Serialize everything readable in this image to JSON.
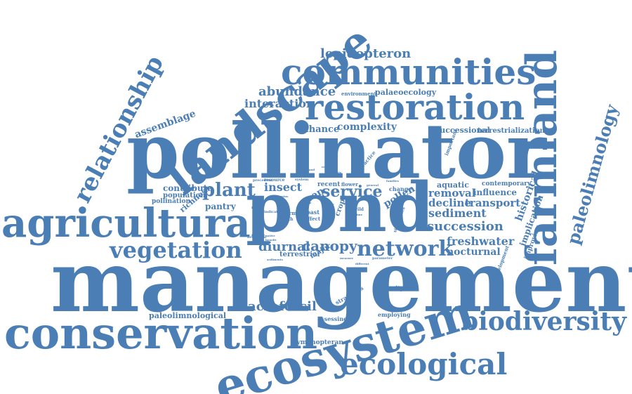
{
  "word_color": "#4a7eb5",
  "background_color": "#ffffff",
  "words": {
    "management": "management",
    "pollinator": "pollinator",
    "pond": "pond",
    "agricultural": "agricultural",
    "conservation": "conservation",
    "ecosystem": "ecosystem",
    "landscape": "landscape",
    "communities": "communities",
    "restoration": "restoration",
    "farmland": "farmland",
    "ecological": "ecological",
    "biodiversity": "biodiversity",
    "relationship": "relationship",
    "vegetation": "vegetation",
    "network": "network",
    "paleolimnology": "paleolimnology",
    "lepidopteron": "lepidopteron",
    "abundance": "abundance",
    "interaction": "interaction",
    "palaeoecology": "palaeoecology",
    "environment": "environment",
    "enhance": "enhance",
    "complexity": "complexity",
    "successional": "successional",
    "terrestrialization": "terrestrialization",
    "assemblage": "assemblage",
    "plant": "plant",
    "insect": "insect",
    "open": "open",
    "service": "service",
    "pollen": "pollen",
    "change": "change",
    "aquatic": "aquatic",
    "contemporary": "contemporary",
    "removal": "removal",
    "influence": "influence",
    "decline": "decline",
    "transport": "transport",
    "sediment": "sediment",
    "historical": "historical",
    "implication": "implication",
    "succession": "succession",
    "freshwater": "freshwater",
    "nocturnal": "nocturnal",
    "improving": "improving",
    "diurnal": "diurnal",
    "canopy": "canopy",
    "terrestrial": "terrestrial",
    "major": "major",
    "contribute": "contribute",
    "population": "population",
    "pollination": "pollination",
    "richness": "richness",
    "pantry": "pantry",
    "macrofossil": "macrofossil",
    "paleolimnological": "paleolimnological",
    "strategies": "strategies",
    "assessing": "assessing",
    "hymenopteran": "hymenopteran",
    "diversity": "diversity",
    "employing": "employing",
    "important": "important",
    "development": "development",
    "resource": "resource",
    "recent": "recent",
    "flower": "flower",
    "past": "past",
    "effect": "effect",
    "habitat": "habitat",
    "crop": "crop",
    "wild": "wild",
    "similarities": "similarities",
    "precedent": "precedent",
    "indicator": "indicator",
    "inform": "inform",
    "moth": "moth",
    "beneficial": "beneficial",
    "practice": "practice",
    "england": "england",
    "analysis": "analysis",
    "system": "system",
    "margins": "margins",
    "benefit": "benefit",
    "measure": "measure",
    "parameter": "parameter",
    "different": "different",
    "general": "general",
    "families": "families",
    "remain": "remain",
    "sediments": "sediments",
    "native": "native",
    "time": "time"
  }
}
